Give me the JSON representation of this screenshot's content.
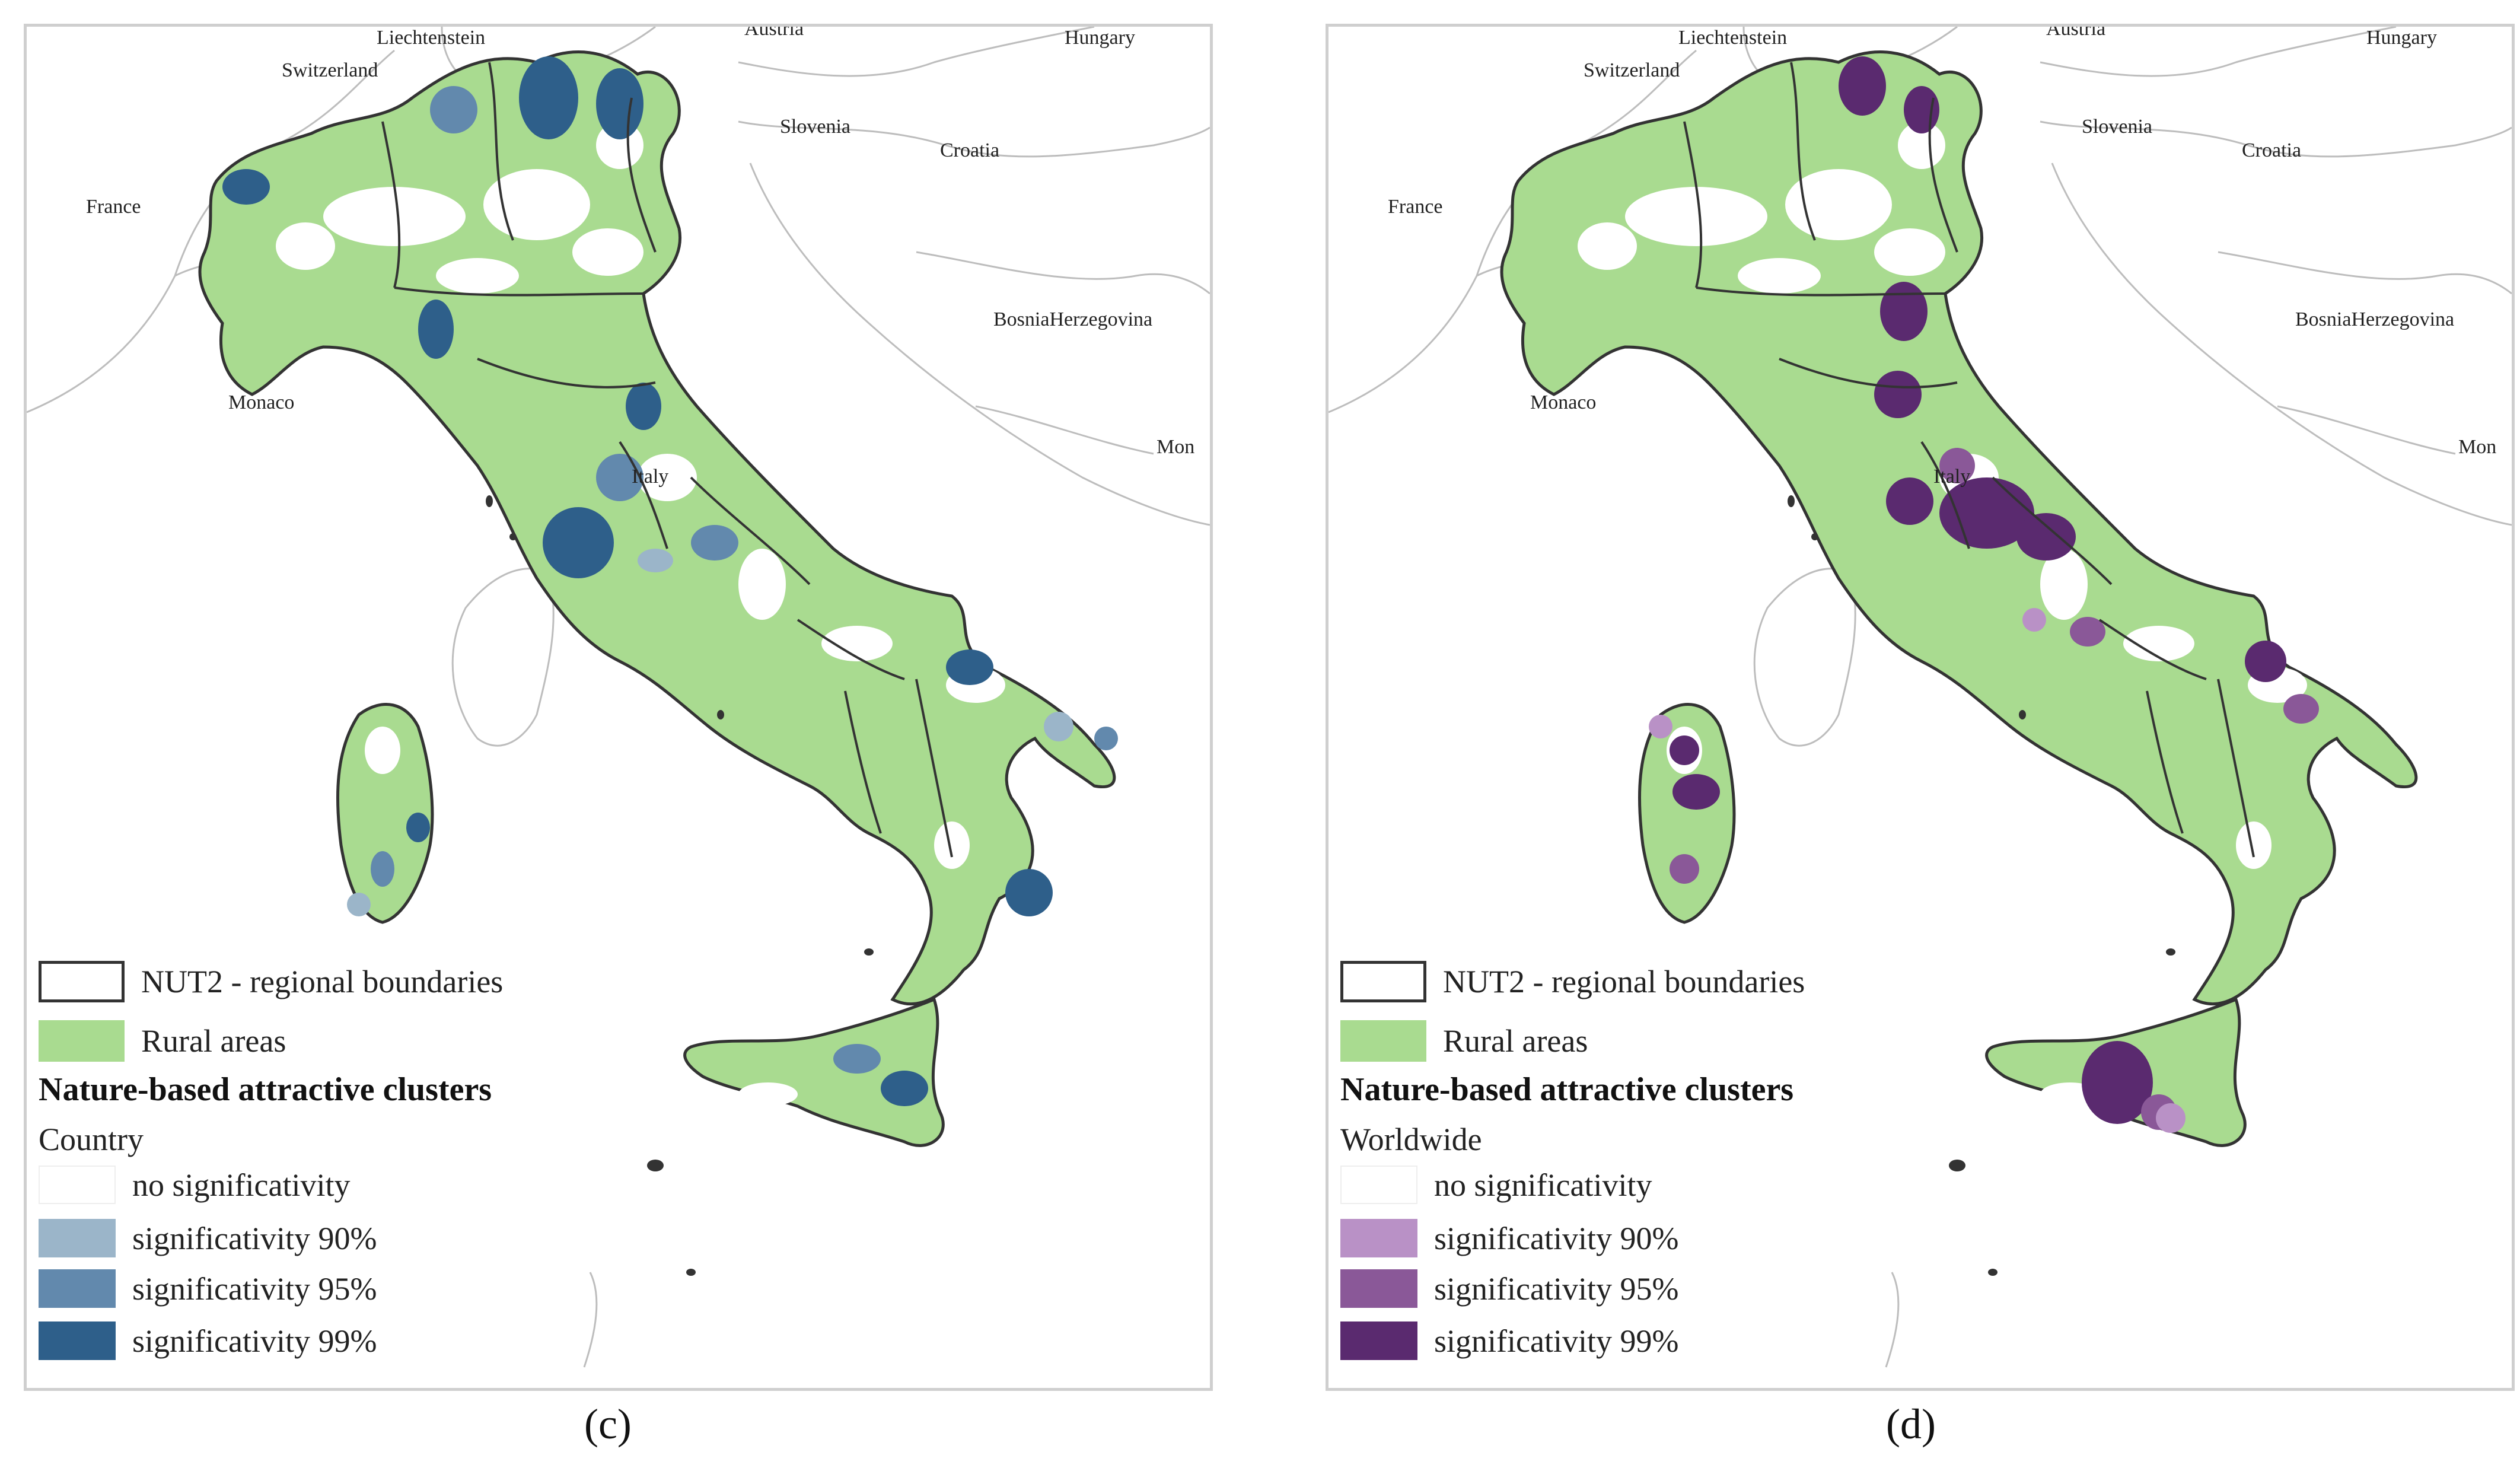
{
  "countries": [
    "Liechtenstein",
    "Austria",
    "Hungary",
    "Switzerland",
    "Slovenia",
    "Croatia",
    "France",
    "BosniaHerzegovina",
    "Monaco",
    "Italy",
    "Mon"
  ],
  "legend_common": {
    "boundary_label": "NUT2 - regional boundaries",
    "rural_label": "Rural areas",
    "clusters_title": "Nature-based attractive clusters",
    "no_sig": "no significativity",
    "sig90": "significativity 90%",
    "sig95": "significativity 95%",
    "sig99": "significativity 99%"
  },
  "panels": [
    {
      "caption": "(c)",
      "scope": "Country",
      "colors": {
        "sig90": "#9bb5c9",
        "sig95": "#6289ad",
        "sig99": "#2e5f8a"
      }
    },
    {
      "caption": "(d)",
      "scope": "Worldwide",
      "colors": {
        "sig90": "#b991c6",
        "sig95": "#8a5898",
        "sig99": "#5a2a6f"
      }
    }
  ],
  "colors": {
    "rural": "#a9db90",
    "boundary": "#333333",
    "background_lines": "#b8b8b8",
    "land": "#ffffff"
  }
}
